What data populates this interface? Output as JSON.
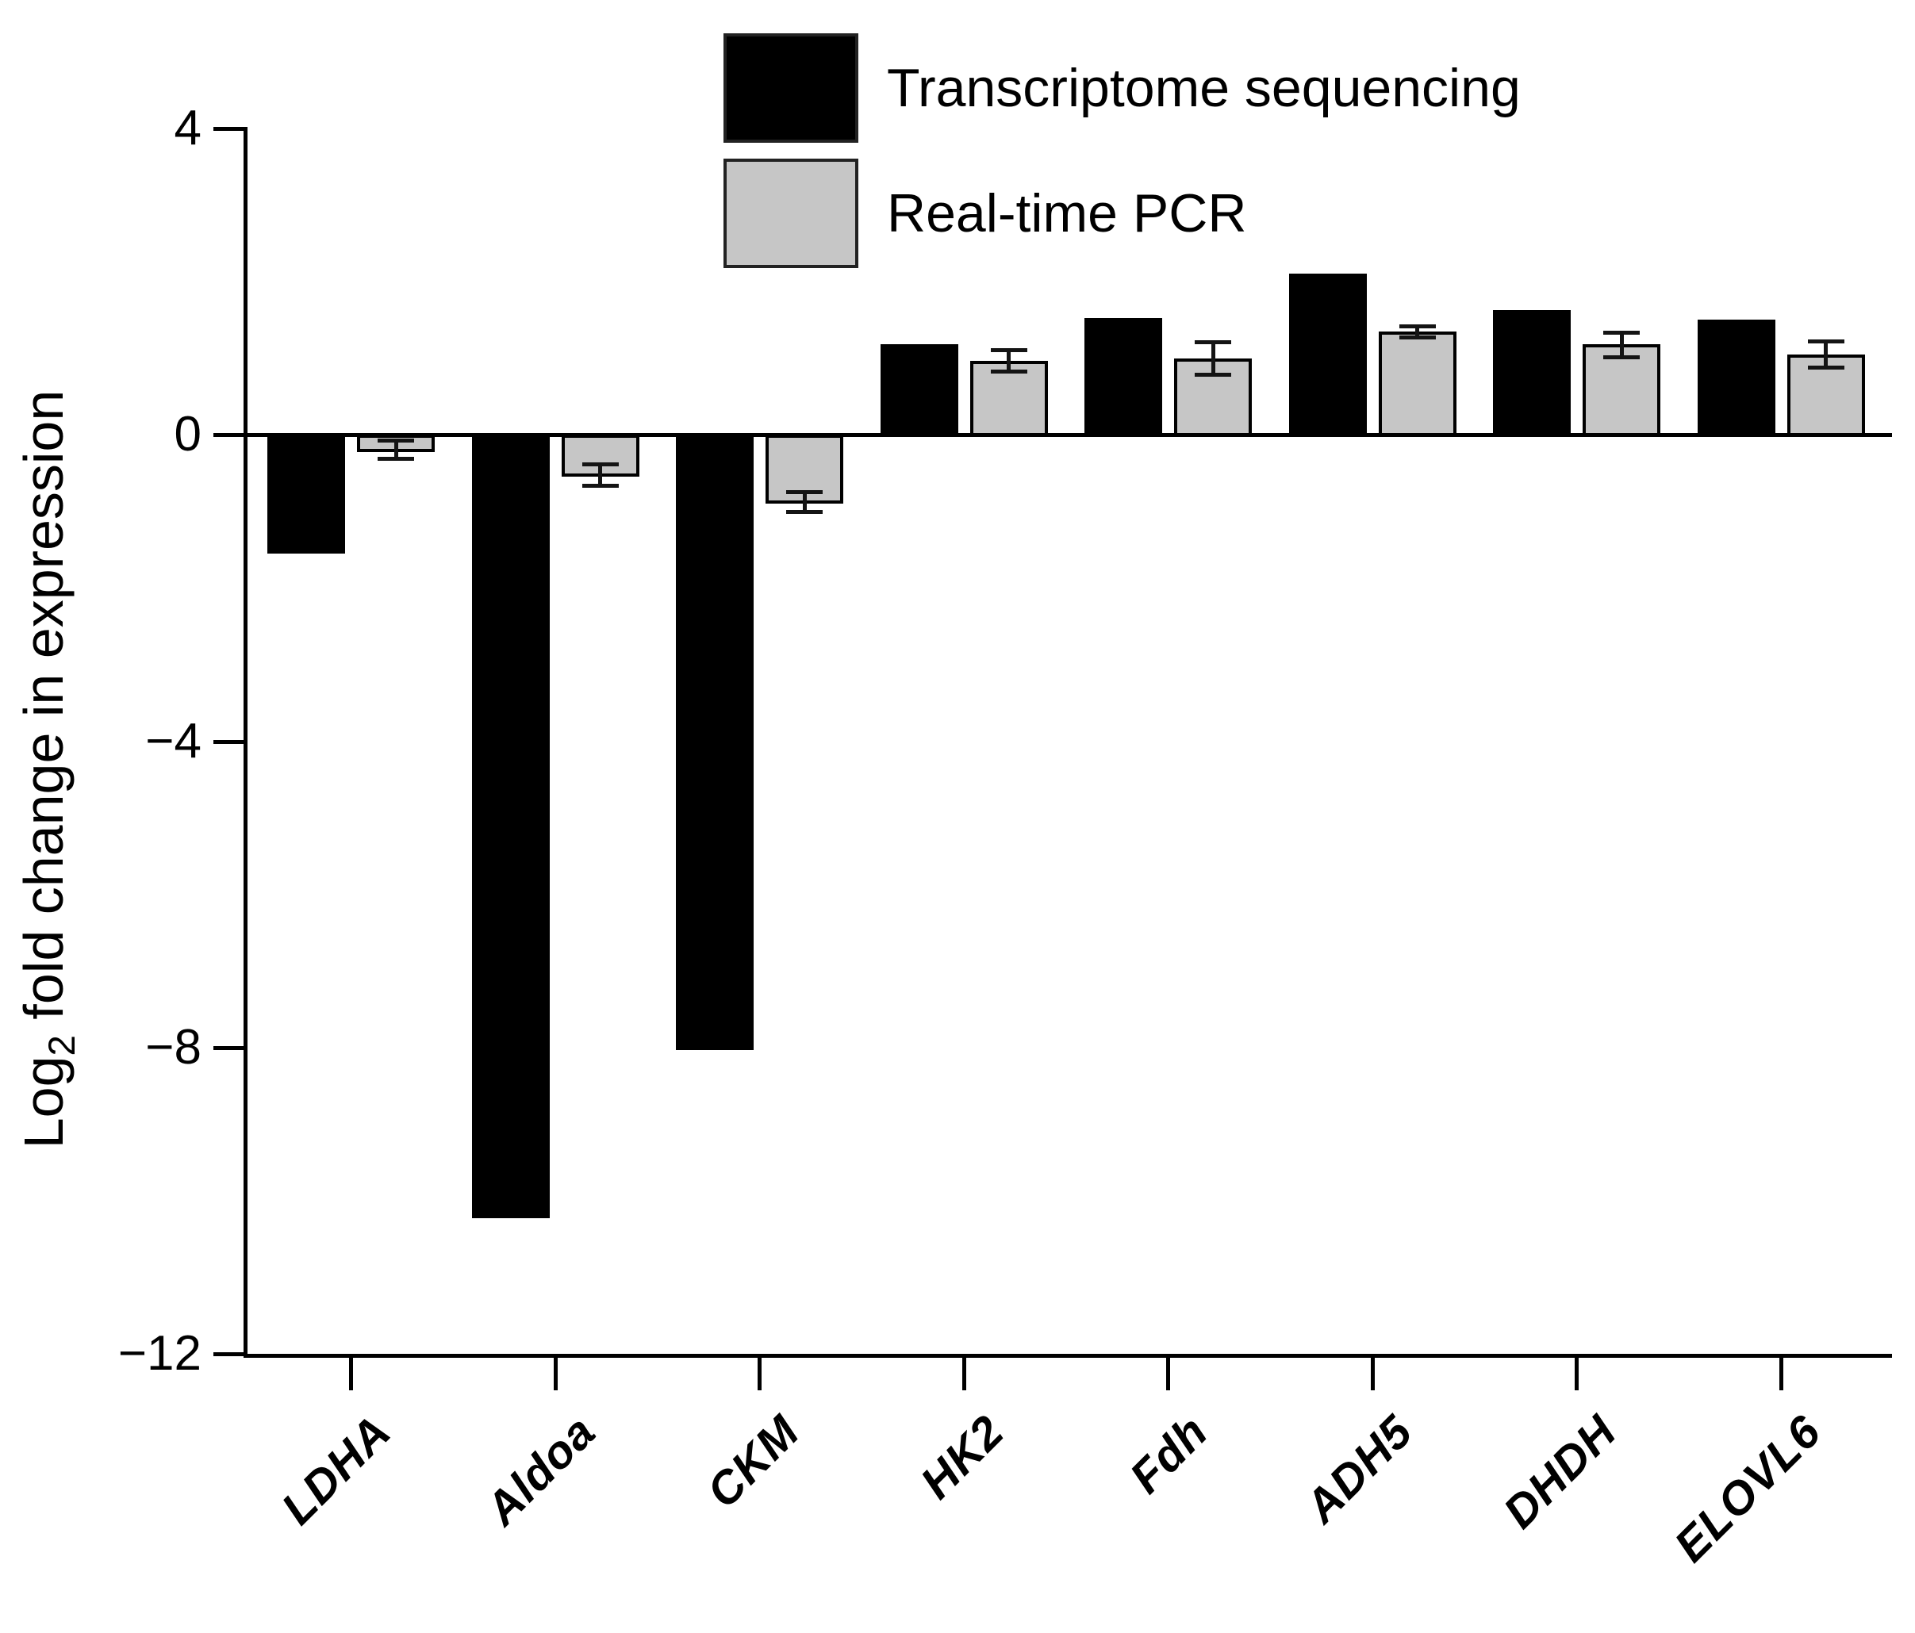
{
  "chart_data": {
    "type": "bar",
    "title": "",
    "categories": [
      "LDHA",
      "Aldoa",
      "CKM",
      "HK2",
      "Fdh",
      "ADH5",
      "DHDH",
      "ELOVL6"
    ],
    "series": [
      {
        "name": "Transcriptome sequencing",
        "color": "#000000",
        "values": [
          -1.52,
          -10.2,
          -8.0,
          1.18,
          1.52,
          2.1,
          1.63,
          1.5
        ]
      },
      {
        "name": "Real-time PCR",
        "color": "#c6c6c6",
        "values": [
          -0.19,
          -0.52,
          -0.87,
          0.97,
          1.0,
          1.35,
          1.18,
          1.05
        ],
        "errors": [
          0.12,
          0.14,
          0.13,
          0.14,
          0.21,
          0.07,
          0.16,
          0.17
        ]
      }
    ],
    "ylabel": {
      "pre": "Log",
      "sub": "2",
      "post": " fold change in expression"
    },
    "xlabel": "",
    "yticks": [
      4,
      0,
      -4,
      -8,
      -12
    ],
    "ylim": [
      -12,
      4
    ],
    "grid": false,
    "legend_position": "top-center",
    "background_color": "#ffffff",
    "axis_color": "#000000"
  }
}
